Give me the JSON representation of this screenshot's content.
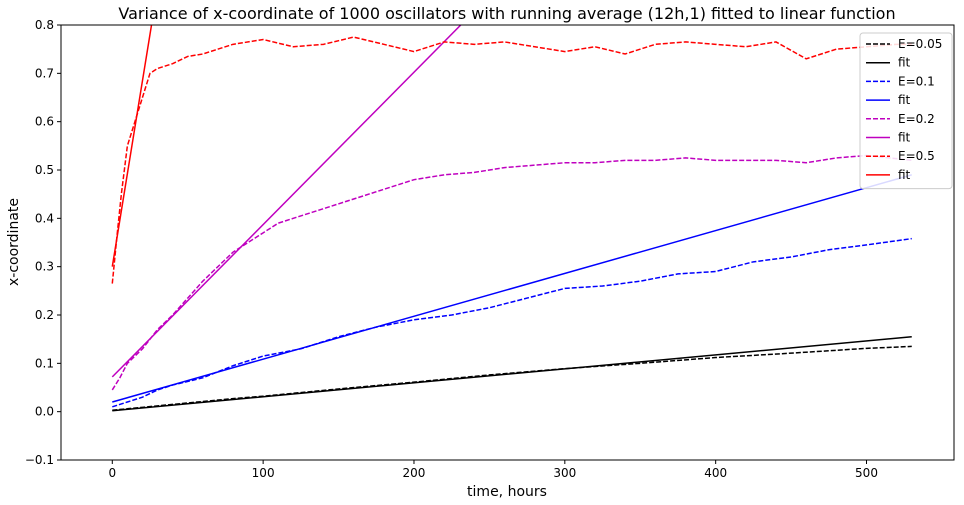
{
  "chart_data": {
    "type": "line",
    "title": "Variance of x-coordinate of 1000 oscillators with running average (12h,1) fitted to linear function",
    "xlabel": "time, hours",
    "ylabel": "x-coordinate",
    "xlim": [
      -34,
      558
    ],
    "ylim": [
      -0.1,
      0.8
    ],
    "xticks": [
      0,
      100,
      200,
      300,
      400,
      500
    ],
    "yticks": [
      -0.1,
      0.0,
      0.1,
      0.2,
      0.3,
      0.4,
      0.5,
      0.6,
      0.7,
      0.8
    ],
    "xtick_labels": [
      "0",
      "100",
      "200",
      "300",
      "400",
      "500"
    ],
    "ytick_labels": [
      "−0.1",
      "0.0",
      "0.1",
      "0.2",
      "0.3",
      "0.4",
      "0.5",
      "0.6",
      "0.7",
      "0.8"
    ],
    "grid": false,
    "legend_position": "top-right",
    "series": [
      {
        "name": "E=0.05",
        "style": "dashed",
        "color": "#000000",
        "x": [
          0,
          20,
          40,
          60,
          80,
          100,
          150,
          200,
          250,
          300,
          350,
          400,
          450,
          500,
          530
        ],
        "y": [
          0.003,
          0.009,
          0.015,
          0.021,
          0.027,
          0.032,
          0.047,
          0.061,
          0.076,
          0.089,
          0.1,
          0.112,
          0.121,
          0.131,
          0.135
        ]
      },
      {
        "name": "fit",
        "style": "solid",
        "color": "#000000",
        "x": [
          0,
          530
        ],
        "y": [
          0.002,
          0.155
        ]
      },
      {
        "name": "E=0.1",
        "style": "dashed",
        "color": "#0000ff",
        "x": [
          0,
          10,
          20,
          30,
          40,
          60,
          80,
          100,
          125,
          150,
          175,
          200,
          225,
          250,
          275,
          300,
          325,
          350,
          375,
          400,
          425,
          450,
          475,
          500,
          530
        ],
        "y": [
          0.01,
          0.02,
          0.03,
          0.045,
          0.055,
          0.07,
          0.095,
          0.115,
          0.13,
          0.155,
          0.175,
          0.19,
          0.2,
          0.215,
          0.235,
          0.255,
          0.26,
          0.27,
          0.285,
          0.29,
          0.31,
          0.32,
          0.335,
          0.345,
          0.358
        ]
      },
      {
        "name": "fit",
        "style": "solid",
        "color": "#0000ff",
        "x": [
          0,
          530
        ],
        "y": [
          0.02,
          0.49
        ]
      },
      {
        "name": "E=0.2",
        "style": "dashed",
        "color": "#bf00bf",
        "x": [
          0,
          5,
          10,
          20,
          30,
          40,
          50,
          60,
          70,
          80,
          90,
          100,
          110,
          120,
          140,
          160,
          180,
          200,
          220,
          240,
          260,
          280,
          300,
          320,
          340,
          360,
          380,
          400,
          420,
          440,
          460,
          480,
          500,
          530
        ],
        "y": [
          0.045,
          0.07,
          0.1,
          0.13,
          0.17,
          0.2,
          0.235,
          0.27,
          0.3,
          0.33,
          0.35,
          0.37,
          0.39,
          0.4,
          0.42,
          0.44,
          0.46,
          0.48,
          0.49,
          0.495,
          0.505,
          0.51,
          0.515,
          0.515,
          0.52,
          0.52,
          0.525,
          0.52,
          0.52,
          0.52,
          0.515,
          0.525,
          0.53,
          0.52
        ]
      },
      {
        "name": "fit",
        "style": "solid",
        "color": "#bf00bf",
        "x": [
          0,
          231
        ],
        "y": [
          0.072,
          0.8
        ]
      },
      {
        "name": "E=0.5",
        "style": "dashed",
        "color": "#ff0000",
        "x": [
          0,
          3,
          6,
          10,
          15,
          20,
          25,
          30,
          40,
          50,
          60,
          80,
          100,
          120,
          140,
          160,
          180,
          200,
          220,
          240,
          260,
          280,
          300,
          320,
          340,
          360,
          380,
          400,
          420,
          440,
          460,
          480,
          500,
          520,
          530
        ],
        "y": [
          0.265,
          0.36,
          0.45,
          0.55,
          0.6,
          0.65,
          0.7,
          0.71,
          0.72,
          0.735,
          0.74,
          0.76,
          0.77,
          0.755,
          0.76,
          0.775,
          0.76,
          0.745,
          0.765,
          0.76,
          0.765,
          0.755,
          0.745,
          0.755,
          0.74,
          0.76,
          0.765,
          0.76,
          0.755,
          0.765,
          0.73,
          0.75,
          0.755,
          0.76,
          0.76
        ]
      },
      {
        "name": "fit",
        "style": "solid",
        "color": "#ff0000",
        "x": [
          0,
          26
        ],
        "y": [
          0.3,
          0.8
        ]
      }
    ]
  }
}
